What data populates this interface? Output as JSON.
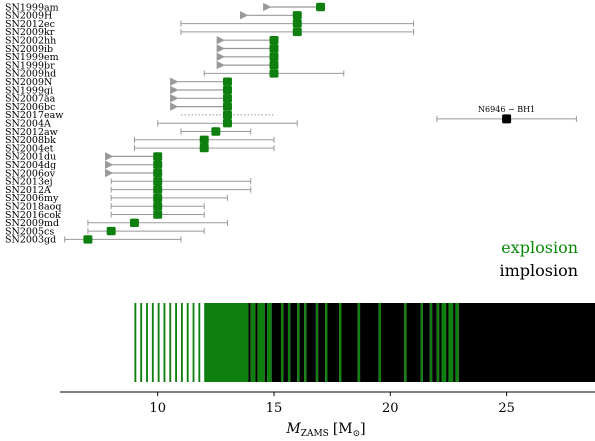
{
  "chart_data": {
    "type": "scatter",
    "xlabel": "M_ZAMS [M_⊙]",
    "xlabel_main": "M",
    "xlabel_sub": "ZAMS",
    "xlabel_unit": "[M",
    "xlabel_unit_sub": "⊙",
    "xlabel_unit_close": "]",
    "xlim": [
      5.8,
      28.8
    ],
    "xticks": [
      10,
      15,
      20,
      25
    ],
    "xtick_labels": [
      "10",
      "15",
      "20",
      "25"
    ],
    "legend": [
      {
        "label": "explosion",
        "color": "#0a8a0a"
      },
      {
        "label": "implosion",
        "color": "#000000"
      }
    ],
    "colors": {
      "explosion": "#0f7f0f",
      "implosion": "#000000",
      "errorbar": "#999999"
    },
    "supernovae": [
      {
        "name": "SN1999am",
        "mass": 17.0,
        "lower_limit": true,
        "arrow_to": 14.6
      },
      {
        "name": "SN2009H",
        "mass": 16.0,
        "lower_limit": true,
        "arrow_to": 13.6
      },
      {
        "name": "SN2012ec",
        "mass": 16.0,
        "err": [
          11.0,
          21.0
        ]
      },
      {
        "name": "SN2009kr",
        "mass": 16.0,
        "err": [
          11.0,
          21.0
        ]
      },
      {
        "name": "SN2002hh",
        "mass": 15.0,
        "lower_limit": true,
        "arrow_to": 12.6
      },
      {
        "name": "SN2009ib",
        "mass": 15.0,
        "lower_limit": true,
        "arrow_to": 12.6
      },
      {
        "name": "SN1999em",
        "mass": 15.0,
        "lower_limit": true,
        "arrow_to": 12.6
      },
      {
        "name": "SN1999br",
        "mass": 15.0,
        "lower_limit": true,
        "arrow_to": 12.6
      },
      {
        "name": "SN2009hd",
        "mass": 15.0,
        "err": [
          12.0,
          18.0
        ]
      },
      {
        "name": "SN2009N",
        "mass": 13.0,
        "lower_limit": true,
        "arrow_to": 10.6
      },
      {
        "name": "SN1999gi",
        "mass": 13.0,
        "lower_limit": true,
        "arrow_to": 10.6
      },
      {
        "name": "SN2007aa",
        "mass": 13.0,
        "lower_limit": true,
        "arrow_to": 10.6
      },
      {
        "name": "SN2006bc",
        "mass": 13.0,
        "lower_limit": true,
        "arrow_to": 10.6
      },
      {
        "name": "SN2017eaw",
        "mass": 13.0,
        "err": [
          11.0,
          15.0
        ],
        "dotted": true
      },
      {
        "name": "SN2004A",
        "mass": 13.0,
        "err": [
          10.0,
          16.0
        ]
      },
      {
        "name": "SN2012aw",
        "mass": 12.5,
        "err": [
          11.0,
          14.0
        ]
      },
      {
        "name": "SN2008bk",
        "mass": 12.0,
        "err": [
          9.0,
          15.0
        ]
      },
      {
        "name": "SN2004et",
        "mass": 12.0,
        "err": [
          9.0,
          15.0
        ]
      },
      {
        "name": "SN2001du",
        "mass": 10.0,
        "lower_limit": true,
        "arrow_to": 7.8
      },
      {
        "name": "SN2004dg",
        "mass": 10.0,
        "lower_limit": true,
        "arrow_to": 7.8
      },
      {
        "name": "SN2006ov",
        "mass": 10.0,
        "lower_limit": true,
        "arrow_to": 7.8
      },
      {
        "name": "SN2013ej",
        "mass": 10.0,
        "err": [
          8.0,
          14.0
        ]
      },
      {
        "name": "SN2012A",
        "mass": 10.0,
        "err": [
          8.0,
          14.0
        ]
      },
      {
        "name": "SN2006my",
        "mass": 10.0,
        "err": [
          8.0,
          13.0
        ]
      },
      {
        "name": "SN2018aoq",
        "mass": 10.0,
        "err": [
          8.0,
          12.0
        ]
      },
      {
        "name": "SN2016cok",
        "mass": 10.0,
        "err": [
          8.0,
          12.0
        ]
      },
      {
        "name": "SN2009md",
        "mass": 9.0,
        "err": [
          7.0,
          13.0
        ]
      },
      {
        "name": "SN2005cs",
        "mass": 8.0,
        "err": [
          7.0,
          12.0
        ]
      },
      {
        "name": "SN2003gd",
        "mass": 7.0,
        "err": [
          6.0,
          11.0
        ]
      }
    ],
    "special": {
      "name": "N6946 − BH1",
      "mass": 25.0,
      "err": [
        22.0,
        28.0
      ],
      "row": 13,
      "color": "#000000"
    },
    "outcome_bar": {
      "range": [
        9.0,
        28.8
      ],
      "segments": [
        {
          "from": 9.0,
          "to": 9.08,
          "outcome": "explosion"
        },
        {
          "from": 9.25,
          "to": 9.33,
          "outcome": "explosion"
        },
        {
          "from": 9.5,
          "to": 9.58,
          "outcome": "explosion"
        },
        {
          "from": 9.75,
          "to": 9.83,
          "outcome": "explosion"
        },
        {
          "from": 10.0,
          "to": 10.08,
          "outcome": "explosion"
        },
        {
          "from": 10.25,
          "to": 10.33,
          "outcome": "explosion"
        },
        {
          "from": 10.5,
          "to": 10.58,
          "outcome": "explosion"
        },
        {
          "from": 10.75,
          "to": 10.83,
          "outcome": "explosion"
        },
        {
          "from": 11.0,
          "to": 11.08,
          "outcome": "explosion"
        },
        {
          "from": 11.25,
          "to": 11.33,
          "outcome": "explosion"
        },
        {
          "from": 11.5,
          "to": 11.58,
          "outcome": "explosion"
        },
        {
          "from": 11.75,
          "to": 11.83,
          "outcome": "explosion"
        },
        {
          "from": 12.0,
          "to": 13.9,
          "outcome": "explosion"
        },
        {
          "from": 13.9,
          "to": 14.0,
          "outcome": "implosion"
        },
        {
          "from": 14.0,
          "to": 14.2,
          "outcome": "explosion"
        },
        {
          "from": 14.2,
          "to": 14.3,
          "outcome": "implosion"
        },
        {
          "from": 14.3,
          "to": 14.6,
          "outcome": "explosion"
        },
        {
          "from": 14.6,
          "to": 14.7,
          "outcome": "implosion"
        },
        {
          "from": 14.7,
          "to": 14.9,
          "outcome": "explosion"
        },
        {
          "from": 14.9,
          "to": 15.3,
          "outcome": "implosion"
        },
        {
          "from": 15.3,
          "to": 15.4,
          "outcome": "explosion"
        },
        {
          "from": 15.4,
          "to": 15.6,
          "outcome": "implosion"
        },
        {
          "from": 15.6,
          "to": 15.7,
          "outcome": "explosion"
        },
        {
          "from": 15.7,
          "to": 16.0,
          "outcome": "implosion"
        },
        {
          "from": 16.0,
          "to": 16.1,
          "outcome": "explosion"
        },
        {
          "from": 16.1,
          "to": 16.3,
          "outcome": "implosion"
        },
        {
          "from": 16.3,
          "to": 16.4,
          "outcome": "explosion"
        },
        {
          "from": 16.4,
          "to": 16.8,
          "outcome": "implosion"
        },
        {
          "from": 16.8,
          "to": 16.9,
          "outcome": "explosion"
        },
        {
          "from": 16.9,
          "to": 17.2,
          "outcome": "implosion"
        },
        {
          "from": 17.2,
          "to": 17.3,
          "outcome": "explosion"
        },
        {
          "from": 17.3,
          "to": 17.8,
          "outcome": "implosion"
        },
        {
          "from": 17.8,
          "to": 17.9,
          "outcome": "explosion"
        },
        {
          "from": 17.9,
          "to": 18.6,
          "outcome": "implosion"
        },
        {
          "from": 18.6,
          "to": 18.7,
          "outcome": "explosion"
        },
        {
          "from": 18.7,
          "to": 19.5,
          "outcome": "implosion"
        },
        {
          "from": 19.5,
          "to": 19.6,
          "outcome": "explosion"
        },
        {
          "from": 19.6,
          "to": 20.6,
          "outcome": "implosion"
        },
        {
          "from": 20.6,
          "to": 20.7,
          "outcome": "explosion"
        },
        {
          "from": 20.7,
          "to": 21.3,
          "outcome": "implosion"
        },
        {
          "from": 21.3,
          "to": 21.4,
          "outcome": "explosion"
        },
        {
          "from": 21.4,
          "to": 21.7,
          "outcome": "implosion"
        },
        {
          "from": 21.7,
          "to": 21.8,
          "outcome": "explosion"
        },
        {
          "from": 21.8,
          "to": 22.0,
          "outcome": "implosion"
        },
        {
          "from": 22.0,
          "to": 22.1,
          "outcome": "explosion"
        },
        {
          "from": 22.1,
          "to": 22.2,
          "outcome": "implosion"
        },
        {
          "from": 22.2,
          "to": 22.4,
          "outcome": "explosion"
        },
        {
          "from": 22.4,
          "to": 22.5,
          "outcome": "implosion"
        },
        {
          "from": 22.5,
          "to": 22.7,
          "outcome": "explosion"
        },
        {
          "from": 22.7,
          "to": 22.8,
          "outcome": "implosion"
        },
        {
          "from": 22.8,
          "to": 22.95,
          "outcome": "explosion"
        },
        {
          "from": 22.95,
          "to": 28.8,
          "outcome": "implosion"
        }
      ]
    }
  }
}
